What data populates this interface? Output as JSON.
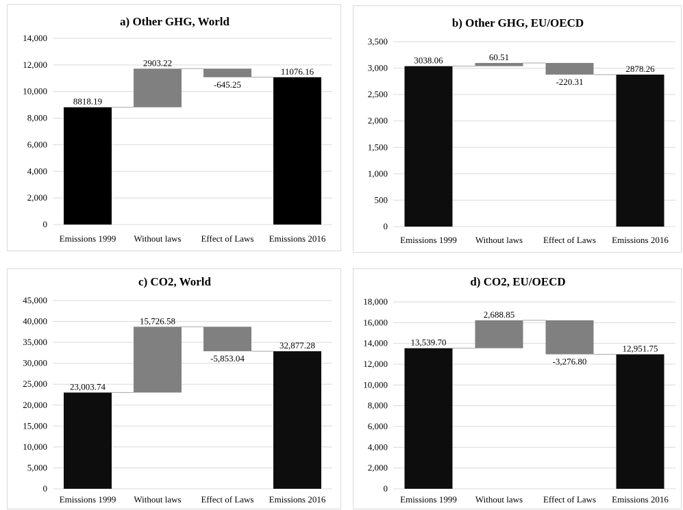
{
  "chart_data": [
    {
      "type": "bar",
      "subtype": "waterfall",
      "title": "a) Other GHG, World",
      "categories": [
        "Emissions 1999",
        "Without laws",
        "Effect of Laws",
        "Emissions 2016"
      ],
      "values": [
        8818.19,
        2903.22,
        -645.25,
        11076.16
      ],
      "data_labels": [
        "8818.19",
        "2903.22",
        "-645.25",
        "11076.16"
      ],
      "bar_kinds": [
        "total",
        "change",
        "change",
        "total"
      ],
      "ylim": [
        0,
        14000
      ],
      "yticks": [
        0,
        2000,
        4000,
        6000,
        8000,
        10000,
        12000,
        14000
      ],
      "ytick_labels": [
        "0",
        "2,000",
        "4,000",
        "6,000",
        "8,000",
        "10,000",
        "12,000",
        "14,000"
      ],
      "grid": true,
      "colors": {
        "total": "#000000",
        "change": "#808080"
      }
    },
    {
      "type": "bar",
      "subtype": "waterfall",
      "title": "b) Other GHG, EU/OECD",
      "categories": [
        "Emissions 1999",
        "Without laws",
        "Effect of Laws",
        "Emissions 2016"
      ],
      "values": [
        3038.06,
        60.51,
        -220.31,
        2878.26
      ],
      "data_labels": [
        "3038.06",
        "60.51",
        "-220.31",
        "2878.26"
      ],
      "bar_kinds": [
        "total",
        "change",
        "change",
        "total"
      ],
      "ylim": [
        0,
        3500
      ],
      "yticks": [
        0,
        500,
        1000,
        1500,
        2000,
        2500,
        3000,
        3500
      ],
      "ytick_labels": [
        "0",
        "500",
        "1,000",
        "1,500",
        "2,000",
        "2,500",
        "3,000",
        "3,500"
      ],
      "grid": true,
      "colors": {
        "total": "#0d0d0d",
        "change": "#808080"
      }
    },
    {
      "type": "bar",
      "subtype": "waterfall",
      "title": "c) CO2, World",
      "categories": [
        "Emissions 1999",
        "Without laws",
        "Effect of Laws",
        "Emissions 2016"
      ],
      "values": [
        23003.74,
        15726.58,
        -5853.04,
        32877.28
      ],
      "data_labels": [
        "23,003.74",
        "15,726.58",
        "-5,853.04",
        "32,877.28"
      ],
      "bar_kinds": [
        "total",
        "change",
        "change",
        "total"
      ],
      "ylim": [
        0,
        45000
      ],
      "yticks": [
        0,
        5000,
        10000,
        15000,
        20000,
        25000,
        30000,
        35000,
        40000,
        45000
      ],
      "ytick_labels": [
        "0",
        "5,000",
        "10,000",
        "15,000",
        "20,000",
        "25,000",
        "30,000",
        "35,000",
        "40,000",
        "45,000"
      ],
      "grid": true,
      "colors": {
        "total": "#0d0d0d",
        "change": "#808080"
      }
    },
    {
      "type": "bar",
      "subtype": "waterfall",
      "title": "d) CO2, EU/OECD",
      "categories": [
        "Emissions 1999",
        "Without laws",
        "Effect of Laws",
        "Emissions 2016"
      ],
      "values": [
        13539.7,
        2688.85,
        -3276.8,
        12951.75
      ],
      "data_labels": [
        "13,539.70",
        "2,688.85",
        "-3,276.80",
        "12,951.75"
      ],
      "bar_kinds": [
        "total",
        "change",
        "change",
        "total"
      ],
      "ylim": [
        0,
        18000
      ],
      "yticks": [
        0,
        2000,
        4000,
        6000,
        8000,
        10000,
        12000,
        14000,
        16000,
        18000
      ],
      "ytick_labels": [
        "0",
        "2,000",
        "4,000",
        "6,000",
        "8,000",
        "10,000",
        "12,000",
        "14,000",
        "16,000",
        "18,000"
      ],
      "grid": true,
      "colors": {
        "total": "#0d0d0d",
        "change": "#808080"
      }
    }
  ]
}
